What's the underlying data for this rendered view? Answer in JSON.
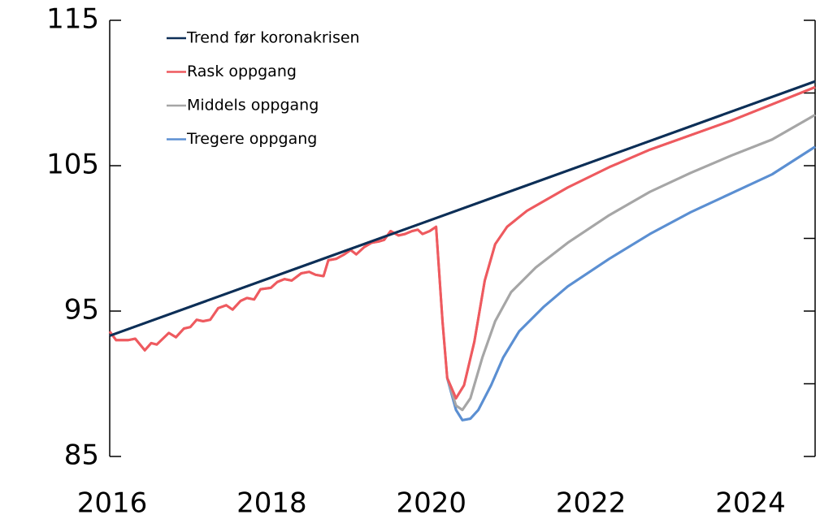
{
  "chart_data": {
    "type": "line",
    "series": [
      {
        "name": "Trend før koronakrisen",
        "color": "#0d2f57",
        "x": [
          2016,
          2024.84
        ],
        "values": [
          93.3,
          110.8
        ]
      },
      {
        "name": "Rask oppgang",
        "color": "#ee5a5f",
        "x": [
          2016.0,
          2016.08,
          2016.23,
          2016.32,
          2016.44,
          2016.52,
          2016.59,
          2016.74,
          2016.83,
          2016.93,
          2017.01,
          2017.09,
          2017.17,
          2017.26,
          2017.36,
          2017.46,
          2017.54,
          2017.64,
          2017.72,
          2017.81,
          2017.89,
          2018.02,
          2018.1,
          2018.19,
          2018.28,
          2018.4,
          2018.5,
          2018.58,
          2018.68,
          2018.74,
          2018.84,
          2018.94,
          2019.02,
          2019.09,
          2019.19,
          2019.28,
          2019.38,
          2019.44,
          2019.52,
          2019.62,
          2019.7,
          2019.79,
          2019.86,
          2019.92,
          2020.01,
          2020.09,
          2020.17,
          2020.23,
          2020.34,
          2020.44,
          2020.57,
          2020.7,
          2020.83,
          2020.98,
          2021.23,
          2021.74,
          2022.26,
          2022.77,
          2023.79,
          2024.84
        ],
        "values": [
          93.6,
          93.0,
          93.0,
          93.1,
          92.3,
          92.8,
          92.7,
          93.5,
          93.2,
          93.8,
          93.9,
          94.4,
          94.3,
          94.4,
          95.2,
          95.4,
          95.1,
          95.7,
          95.9,
          95.8,
          96.5,
          96.6,
          97.0,
          97.2,
          97.1,
          97.6,
          97.7,
          97.5,
          97.4,
          98.5,
          98.6,
          98.9,
          99.2,
          98.9,
          99.4,
          99.7,
          99.8,
          99.9,
          100.5,
          100.2,
          100.3,
          100.5,
          100.6,
          100.3,
          100.5,
          100.8,
          94.3,
          90.4,
          89.0,
          89.9,
          92.9,
          97.1,
          99.6,
          100.8,
          101.9,
          103.5,
          104.9,
          106.1,
          108.1,
          110.4
        ]
      },
      {
        "name": "Middels oppgang",
        "color": "#a6a6a6",
        "x": [
          2020.23,
          2020.34,
          2020.42,
          2020.52,
          2020.67,
          2020.83,
          2021.03,
          2021.34,
          2021.74,
          2022.26,
          2022.77,
          2023.28,
          2023.79,
          2024.3,
          2024.84
        ],
        "values": [
          90.4,
          88.5,
          88.2,
          89.0,
          91.8,
          94.3,
          96.3,
          98.0,
          99.7,
          101.6,
          103.2,
          104.5,
          105.7,
          106.8,
          108.5
        ]
      },
      {
        "name": "Tregere oppgang",
        "color": "#5b8fd2",
        "x": [
          2020.23,
          2020.34,
          2020.42,
          2020.52,
          2020.62,
          2020.78,
          2020.93,
          2021.13,
          2021.44,
          2021.74,
          2022.26,
          2022.77,
          2023.28,
          2023.79,
          2024.3,
          2024.84
        ],
        "values": [
          90.4,
          88.2,
          87.5,
          87.6,
          88.2,
          89.9,
          91.8,
          93.6,
          95.3,
          96.7,
          98.6,
          100.3,
          101.8,
          103.1,
          104.4,
          106.3
        ]
      }
    ],
    "xlim": [
      2016,
      2024.84
    ],
    "xticks": [
      2016,
      2018,
      2020,
      2022,
      2024
    ],
    "ylim": [
      85,
      115
    ],
    "yticks": [
      85,
      95,
      105,
      115
    ],
    "right_ticks": [
      85,
      90,
      95,
      100,
      105,
      110,
      115
    ],
    "legend": "top-left"
  }
}
